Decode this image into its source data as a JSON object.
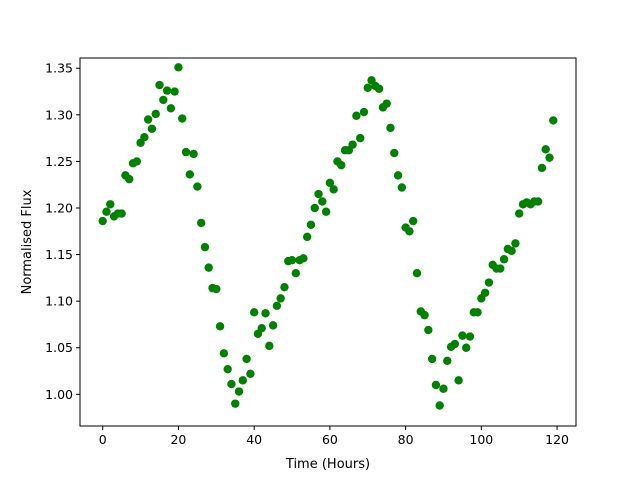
{
  "chart_data": {
    "type": "scatter",
    "title": "",
    "xlabel": "Time (Hours)",
    "ylabel": "Normalised Flux",
    "xlim": [
      -6,
      125
    ],
    "ylim": [
      0.966,
      1.361
    ],
    "xticks": [
      0,
      20,
      40,
      60,
      80,
      100,
      120
    ],
    "yticks": [
      1.0,
      1.05,
      1.1,
      1.15,
      1.2,
      1.25,
      1.3,
      1.35
    ],
    "xtick_labels": [
      "0",
      "20",
      "40",
      "60",
      "80",
      "100",
      "120"
    ],
    "ytick_labels": [
      "1.00",
      "1.05",
      "1.10",
      "1.15",
      "1.20",
      "1.25",
      "1.30",
      "1.35"
    ],
    "grid": false,
    "legend": "none",
    "marker_color": "#008000",
    "series": [
      {
        "x": [
          0,
          1,
          2,
          3,
          4,
          5,
          6,
          7,
          8,
          9,
          10,
          11,
          12,
          13,
          14,
          15,
          16,
          17,
          18,
          19,
          20,
          21,
          22,
          23,
          24,
          25,
          26,
          27,
          28,
          29,
          30,
          31,
          32,
          33,
          34,
          35,
          36,
          37,
          38,
          39,
          40,
          41,
          42,
          43,
          44,
          45,
          46,
          47,
          48,
          49,
          50,
          51,
          52,
          53,
          54,
          55,
          56,
          57,
          58,
          59,
          60,
          61,
          62,
          63,
          64,
          65,
          66,
          67,
          68,
          69,
          70,
          71,
          72,
          73,
          74,
          75,
          76,
          77,
          78,
          79,
          80,
          81,
          82,
          83,
          84,
          85,
          86,
          87,
          88,
          89,
          90,
          91,
          92,
          93,
          94,
          95,
          96,
          97,
          98,
          99,
          100,
          101,
          102,
          103,
          104,
          105,
          106,
          107,
          108,
          109,
          110,
          111,
          112,
          113,
          114,
          115,
          116,
          117,
          118,
          119
        ],
        "y": [
          1.186,
          1.196,
          1.204,
          1.191,
          1.194,
          1.194,
          1.235,
          1.231,
          1.248,
          1.25,
          1.27,
          1.276,
          1.295,
          1.285,
          1.301,
          1.332,
          1.316,
          1.326,
          1.307,
          1.325,
          1.351,
          1.296,
          1.26,
          1.236,
          1.258,
          1.223,
          1.184,
          1.158,
          1.136,
          1.114,
          1.113,
          1.073,
          1.044,
          1.027,
          1.011,
          0.99,
          1.003,
          1.015,
          1.038,
          1.022,
          1.088,
          1.065,
          1.071,
          1.087,
          1.052,
          1.074,
          1.095,
          1.103,
          1.115,
          1.143,
          1.144,
          1.13,
          1.144,
          1.146,
          1.169,
          1.182,
          1.2,
          1.215,
          1.207,
          1.196,
          1.227,
          1.22,
          1.25,
          1.246,
          1.262,
          1.262,
          1.268,
          1.299,
          1.275,
          1.303,
          1.329,
          1.337,
          1.331,
          1.328,
          1.308,
          1.312,
          1.286,
          1.259,
          1.235,
          1.222,
          1.179,
          1.175,
          1.186,
          1.13,
          1.089,
          1.085,
          1.069,
          1.038,
          1.01,
          0.988,
          1.006,
          1.036,
          1.051,
          1.054,
          1.015,
          1.063,
          1.05,
          1.062,
          1.088,
          1.088,
          1.103,
          1.109,
          1.12,
          1.139,
          1.135,
          1.135,
          1.145,
          1.156,
          1.154,
          1.162,
          1.194,
          1.204,
          1.206,
          1.204,
          1.207,
          1.207,
          1.243,
          1.263,
          1.254,
          1.294
        ]
      }
    ]
  }
}
